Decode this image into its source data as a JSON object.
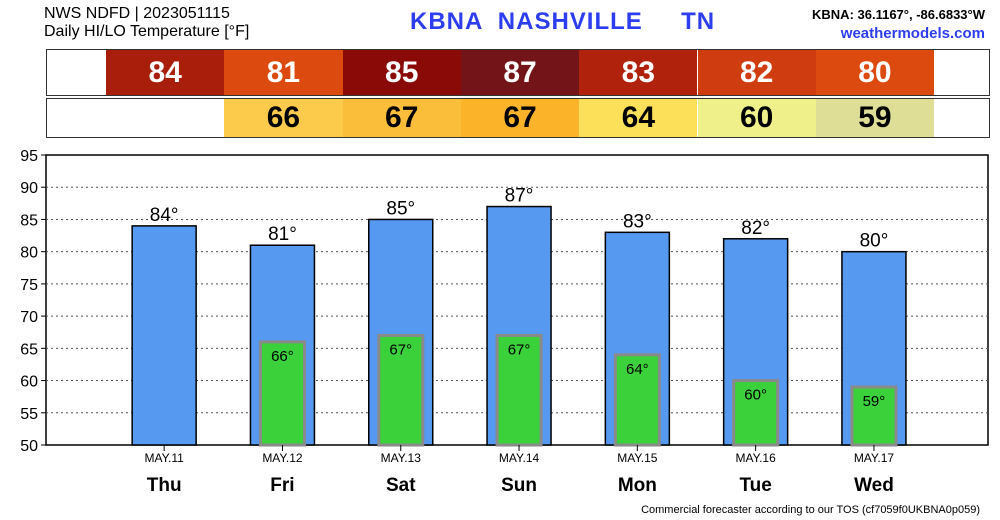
{
  "header": {
    "line1": "NWS NDFD | 2023051115",
    "line2": "Daily HI/LO Temperature [°F]",
    "station_title": "KBNA  NASHVILLE     TN",
    "coords": "KBNA: 36.1167°, -86.6833°W",
    "website": "weathermodels.com"
  },
  "footer": "Commercial forecaster according to our TOS (cf7059f0UKBNA0p059)",
  "hi_strip": [
    {
      "text": "84",
      "color": "#a81e0a",
      "fg": "#ffffff"
    },
    {
      "text": "81",
      "color": "#dc4a10",
      "fg": "#ffffff"
    },
    {
      "text": "85",
      "color": "#8a0a08",
      "fg": "#ffffff"
    },
    {
      "text": "87",
      "color": "#731418",
      "fg": "#ffffff"
    },
    {
      "text": "83",
      "color": "#b1220c",
      "fg": "#ffffff"
    },
    {
      "text": "82",
      "color": "#cf3c10",
      "fg": "#ffffff"
    },
    {
      "text": "80",
      "color": "#dc4a10",
      "fg": "#ffffff"
    }
  ],
  "lo_strip": [
    {
      "text": "",
      "color": "#ffffff",
      "fg": "#000000"
    },
    {
      "text": "66",
      "color": "#fdcb4b",
      "fg": "#000000"
    },
    {
      "text": "67",
      "color": "#fbbe3a",
      "fg": "#000000"
    },
    {
      "text": "67",
      "color": "#fbb32a",
      "fg": "#000000"
    },
    {
      "text": "64",
      "color": "#fde05a",
      "fg": "#000000"
    },
    {
      "text": "60",
      "color": "#eff08a",
      "fg": "#000000"
    },
    {
      "text": "59",
      "color": "#dede96",
      "fg": "#000000"
    }
  ],
  "chart_data": {
    "type": "bar",
    "categories": [
      "Thu",
      "Fri",
      "Sat",
      "Sun",
      "Mon",
      "Tue",
      "Wed"
    ],
    "dates": [
      "MAY.11",
      "MAY.12",
      "MAY.13",
      "MAY.14",
      "MAY.15",
      "MAY.16",
      "MAY.17"
    ],
    "series": [
      {
        "values": [
          84,
          81,
          85,
          87,
          83,
          82,
          80
        ],
        "labels": [
          "84°",
          "81°",
          "85°",
          "87°",
          "83°",
          "82°",
          "80°"
        ],
        "color": "#5599f0"
      },
      {
        "values": [
          null,
          66,
          67,
          67,
          64,
          60,
          59
        ],
        "labels": [
          "",
          "66°",
          "67°",
          "67°",
          "64°",
          "60°",
          "59°"
        ],
        "color": "#3ad13a"
      }
    ],
    "ylim": [
      50,
      95
    ],
    "yticks": [
      95,
      90,
      85,
      80,
      75,
      70,
      65,
      60,
      55,
      50
    ],
    "grid": true
  }
}
